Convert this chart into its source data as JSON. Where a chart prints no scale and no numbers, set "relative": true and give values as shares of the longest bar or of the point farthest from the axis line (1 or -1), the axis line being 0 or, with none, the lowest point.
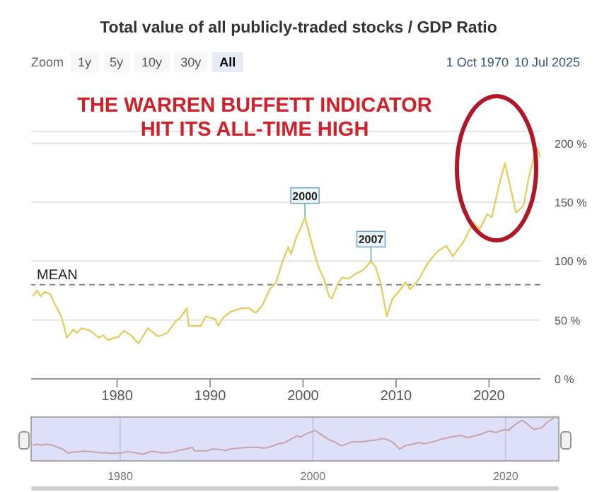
{
  "chart_data": [
    {
      "type": "line",
      "title": "Total value of all publicly-traded stocks / GDP Ratio",
      "x": [
        1970.9,
        1971.4,
        1971.8,
        1972.2,
        1972.8,
        1973.4,
        1974.0,
        1974.6,
        1975.3,
        1975.6,
        1976.2,
        1977.1,
        1978.0,
        1978.5,
        1979.0,
        1980.2,
        1980.7,
        1981.5,
        1982.3,
        1983.3,
        1984.4,
        1985.4,
        1986.3,
        1986.8,
        1987.5,
        1987.7,
        1989.0,
        1989.5,
        1990.5,
        1990.9,
        1991.4,
        1992.2,
        1993.4,
        1994.2,
        1994.9,
        1995.6,
        1996.4,
        1997.1,
        1997.8,
        1998.4,
        1998.7,
        1999.3,
        1999.8,
        2000.2,
        2000.6,
        2001.2,
        2001.7,
        2002.2,
        2002.8,
        2003.1,
        2003.7,
        2004.2,
        2004.9,
        2005.6,
        2006.4,
        2007.3,
        2007.8,
        2008.3,
        2008.6,
        2009.0,
        2009.6,
        2010.3,
        2011.0,
        2011.5,
        2012.4,
        2013.4,
        2014.4,
        2015.4,
        2016.1,
        2017.3,
        2018.3,
        2019.0,
        2019.8,
        2020.3,
        2021.0,
        2021.7,
        2022.2,
        2022.9,
        2023.7,
        2024.3,
        2024.9,
        2025.2,
        2025.5
      ],
      "series": [
        {
          "color": "#e3cf63",
          "values": [
            70,
            75,
            70,
            74,
            72,
            62,
            53,
            35,
            42,
            39,
            43,
            41,
            35,
            37,
            33,
            36,
            41,
            37,
            30,
            43,
            36,
            39,
            49,
            52,
            60,
            45,
            45,
            53,
            51,
            45,
            52,
            57,
            60,
            60,
            56,
            62,
            76,
            82,
            100,
            112,
            106,
            121,
            129,
            137,
            125,
            107,
            94,
            86,
            70,
            68,
            80,
            86,
            85,
            89,
            92,
            100,
            95,
            82,
            70,
            53,
            68,
            74,
            82,
            76,
            84,
            98,
            108,
            113,
            104,
            117,
            133,
            127,
            140,
            137,
            162,
            183,
            166,
            141,
            147,
            172,
            191,
            196,
            188
          ]
        }
      ],
      "xlim": [
        1970.75,
        2025.52
      ],
      "ylim": [
        0,
        210
      ],
      "xticks": [
        1980,
        1990,
        2000,
        2010,
        2020
      ],
      "yticks": [
        {
          "value": 0,
          "label": "0 %"
        },
        {
          "value": 50,
          "label": "50 %"
        },
        {
          "value": 100,
          "label": "100 %"
        },
        {
          "value": 150,
          "label": "150 %"
        },
        {
          "value": 200,
          "label": "200 %"
        }
      ],
      "grid": "y",
      "legend": false,
      "marker": "none",
      "line_style": "solid",
      "ref_lines": [
        {
          "axis": "y",
          "value": 80,
          "label": "MEAN",
          "color": "#888888",
          "line_style": "dashed"
        }
      ],
      "annotations": [
        "THE WARREN BUFFETT INDICATOR",
        "HIT ITS ALL-TIME HIGH",
        "Zoom",
        "1y",
        "5y",
        "10y",
        "30y",
        "All",
        "1 Oct 1970",
        "10 Jul 2025",
        {
          "text": "2000",
          "x": 2000.2,
          "y": 137
        },
        {
          "text": "2007",
          "x": 2007.3,
          "y": 100
        }
      ]
    },
    {
      "type": "line",
      "x": [
        1970.9,
        1971.4,
        1971.8,
        1972.2,
        1972.8,
        1973.4,
        1974.0,
        1974.6,
        1975.3,
        1975.6,
        1976.2,
        1977.1,
        1978.0,
        1978.5,
        1979.0,
        1980.2,
        1980.7,
        1981.5,
        1982.3,
        1983.3,
        1984.4,
        1985.4,
        1986.3,
        1986.8,
        1987.5,
        1987.7,
        1989.0,
        1989.5,
        1990.5,
        1990.9,
        1991.4,
        1992.2,
        1993.4,
        1994.2,
        1994.9,
        1995.6,
        1996.4,
        1997.1,
        1997.8,
        1998.4,
        1998.7,
        1999.3,
        1999.8,
        2000.2,
        2000.6,
        2001.2,
        2001.7,
        2002.2,
        2002.8,
        2003.1,
        2003.7,
        2004.2,
        2004.9,
        2005.6,
        2006.4,
        2007.3,
        2007.8,
        2008.3,
        2008.6,
        2009.0,
        2009.6,
        2010.3,
        2011.0,
        2011.5,
        2012.4,
        2013.4,
        2014.4,
        2015.4,
        2016.1,
        2017.3,
        2018.3,
        2019.0,
        2019.8,
        2020.3,
        2021.0,
        2021.7,
        2022.2,
        2022.9,
        2023.7,
        2024.3,
        2024.9,
        2025.2,
        2025.5
      ],
      "series": [
        {
          "color": "#c9a3a8",
          "values": [
            0.36,
            0.38,
            0.36,
            0.38,
            0.37,
            0.32,
            0.27,
            0.18,
            0.21,
            0.2,
            0.22,
            0.21,
            0.18,
            0.19,
            0.17,
            0.18,
            0.21,
            0.19,
            0.15,
            0.22,
            0.18,
            0.2,
            0.25,
            0.27,
            0.31,
            0.23,
            0.23,
            0.27,
            0.26,
            0.23,
            0.27,
            0.29,
            0.31,
            0.31,
            0.29,
            0.32,
            0.39,
            0.42,
            0.51,
            0.57,
            0.54,
            0.62,
            0.66,
            0.7,
            0.64,
            0.55,
            0.48,
            0.44,
            0.36,
            0.35,
            0.41,
            0.44,
            0.43,
            0.45,
            0.47,
            0.51,
            0.48,
            0.42,
            0.36,
            0.27,
            0.35,
            0.38,
            0.42,
            0.39,
            0.43,
            0.5,
            0.55,
            0.58,
            0.53,
            0.6,
            0.68,
            0.65,
            0.71,
            0.7,
            0.83,
            0.93,
            0.85,
            0.72,
            0.75,
            0.88,
            0.97,
            1,
            0.96
          ]
        }
      ],
      "relative": true,
      "xlim": [
        1970.75,
        2025.52
      ],
      "xticks": [
        1980,
        2000,
        2020
      ],
      "grid": "x",
      "legend": false,
      "marker": "none",
      "bands": [
        {
          "axis": "x",
          "from": 1970.75,
          "to": 2025.52,
          "color": "#d3d5f7"
        }
      ]
    }
  ]
}
